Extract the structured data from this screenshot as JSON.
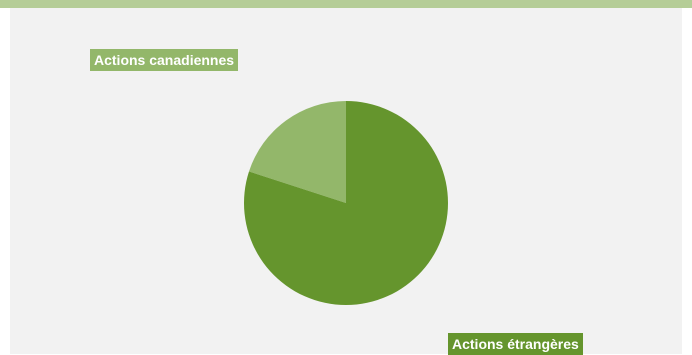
{
  "colors": {
    "top_bar": "#b5cd97",
    "panel_background": "#f2f2f2",
    "canadian": "#93b76a",
    "foreign": "#65952d"
  },
  "chart_data": {
    "type": "pie",
    "title": "",
    "slices": [
      {
        "label": "Actions canadiennes",
        "value": 20,
        "color": "#93b76a"
      },
      {
        "label": "Actions étrangères",
        "value": 80,
        "color": "#65952d"
      }
    ]
  }
}
